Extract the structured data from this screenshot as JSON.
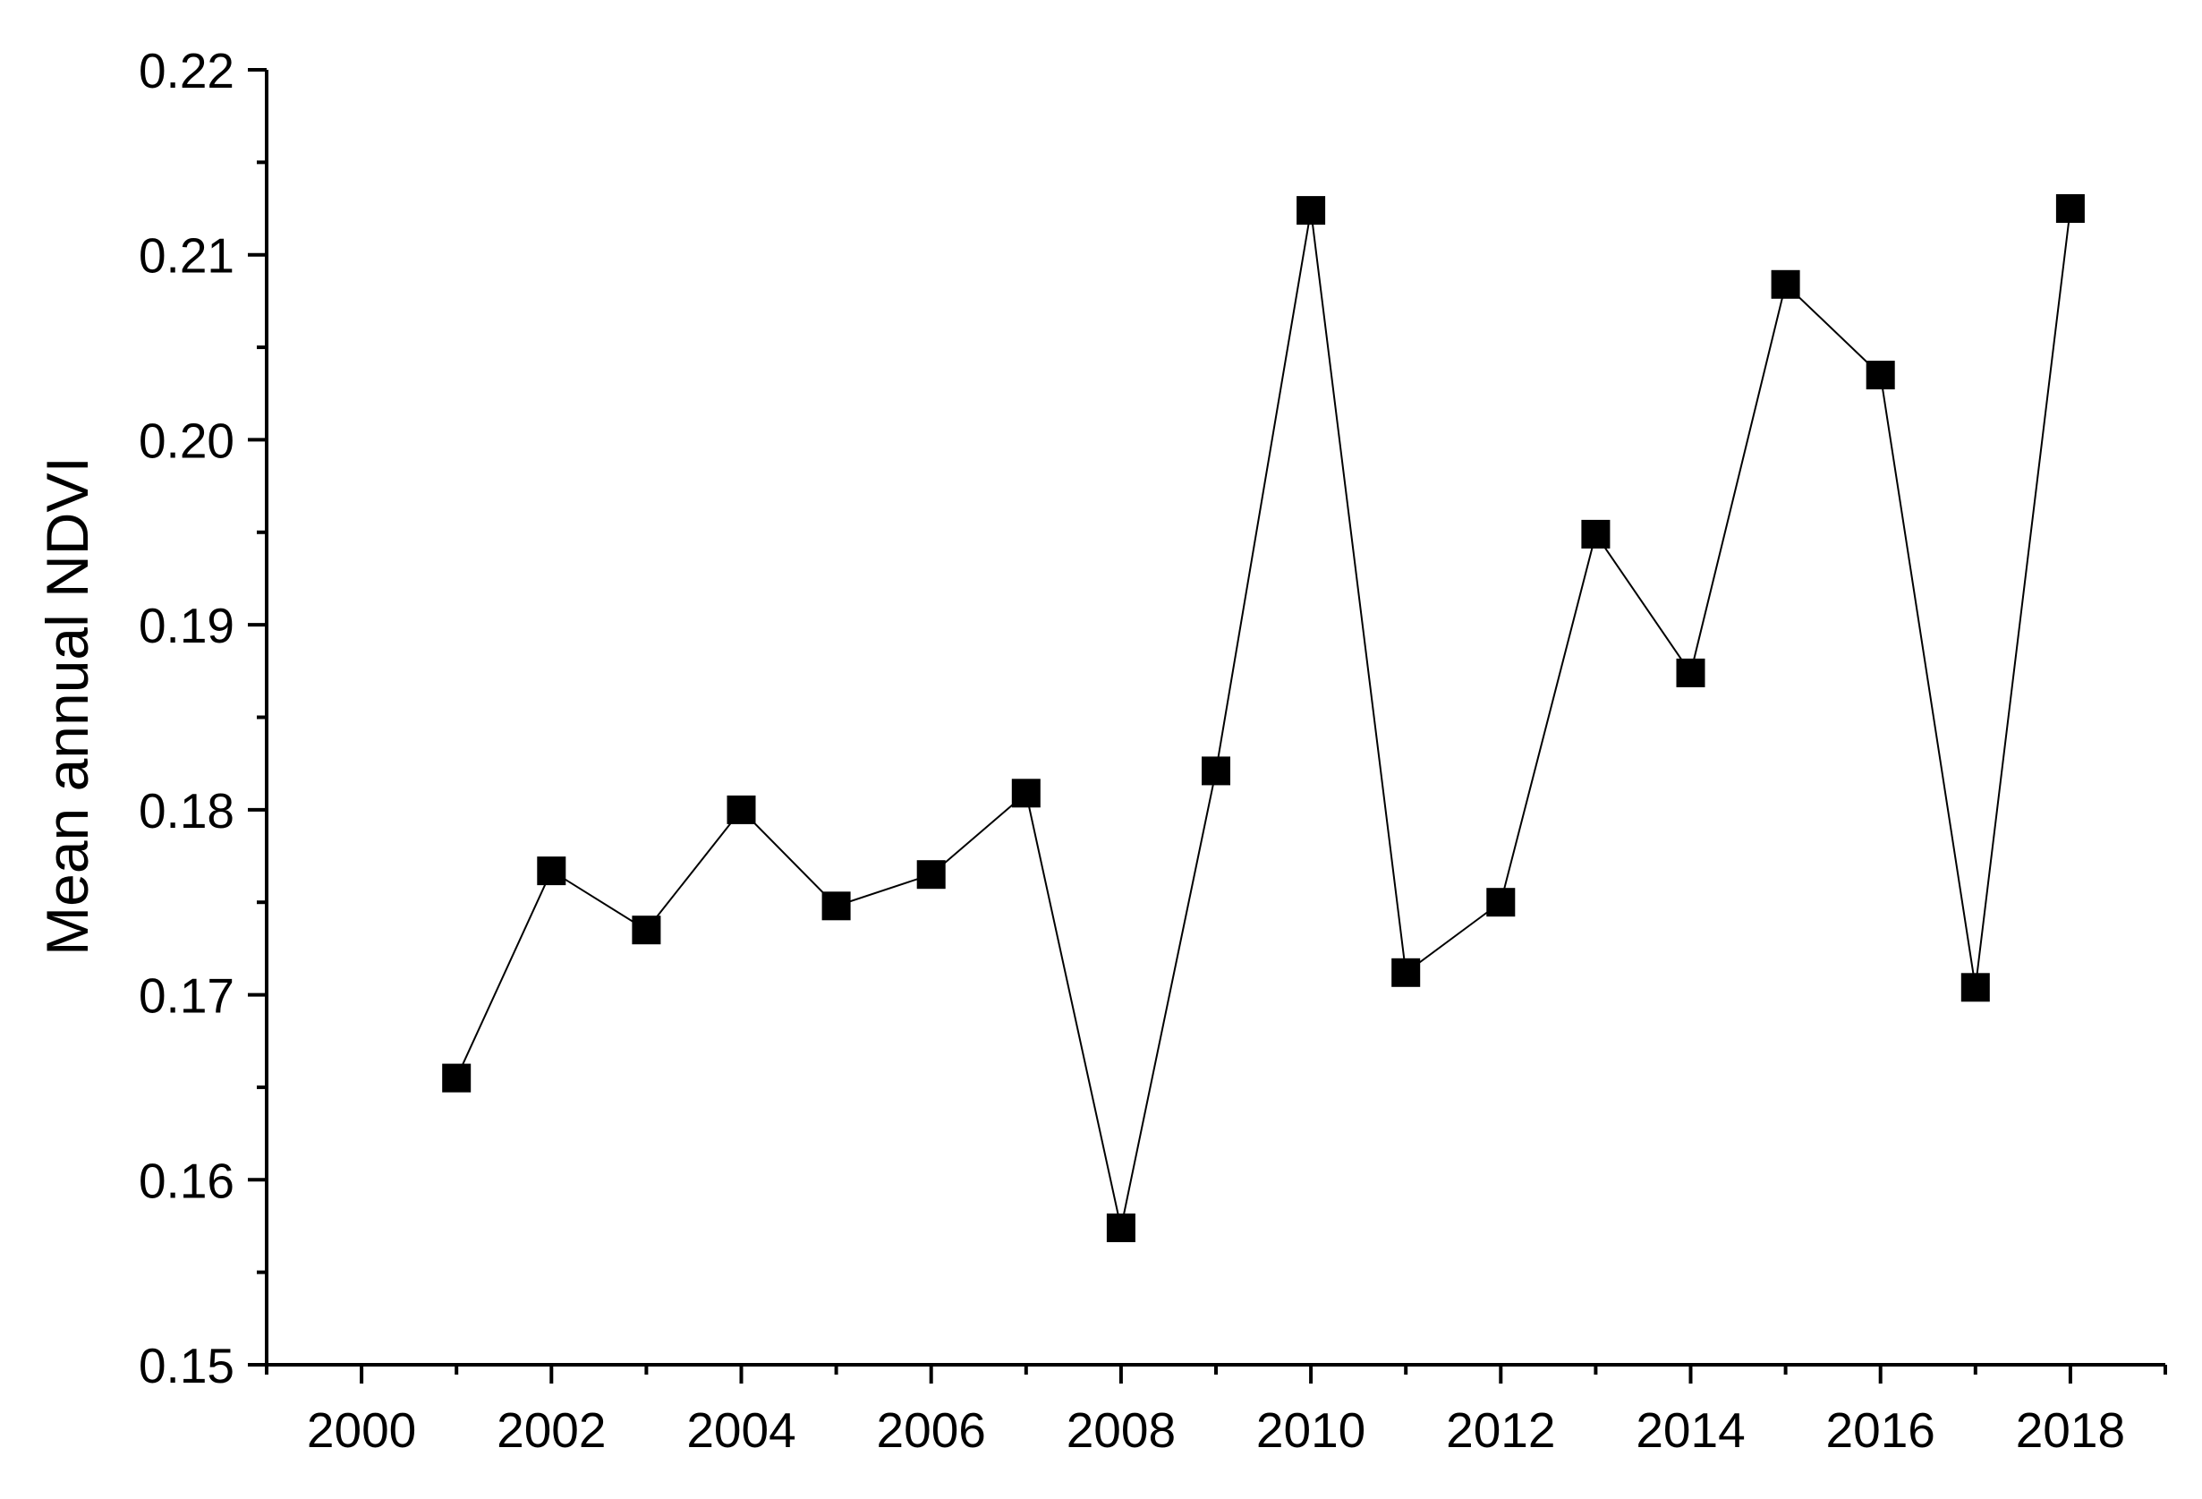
{
  "chart_data": {
    "type": "line",
    "title": "",
    "xlabel": "",
    "ylabel": "Mean annual NDVI",
    "xlim": [
      1999,
      2019
    ],
    "ylim": [
      0.15,
      0.22
    ],
    "x_ticks": [
      "2000",
      "2002",
      "2004",
      "2006",
      "2008",
      "2010",
      "2012",
      "2014",
      "2016",
      "2018"
    ],
    "y_ticks": [
      "0.15",
      "0.16",
      "0.17",
      "0.18",
      "0.19",
      "0.20",
      "0.21",
      "0.22"
    ],
    "grid": false,
    "legend": "none",
    "marker": "square",
    "colors": {
      "line": "#000000",
      "marker": "#000000",
      "axis": "#000000"
    },
    "series": [
      {
        "x": [
          2001,
          2002,
          2003,
          2004,
          2005,
          2006,
          2007,
          2008,
          2009,
          2010,
          2011,
          2012,
          2013,
          2014,
          2015,
          2016,
          2017,
          2018
        ],
        "values": [
          0.1655,
          0.1767,
          0.1735,
          0.18,
          0.1748,
          0.1765,
          0.1809,
          0.1574,
          0.1821,
          0.2124,
          0.1712,
          0.175,
          0.1949,
          0.1874,
          0.2084,
          0.2035,
          0.1704,
          0.2125
        ]
      }
    ]
  }
}
